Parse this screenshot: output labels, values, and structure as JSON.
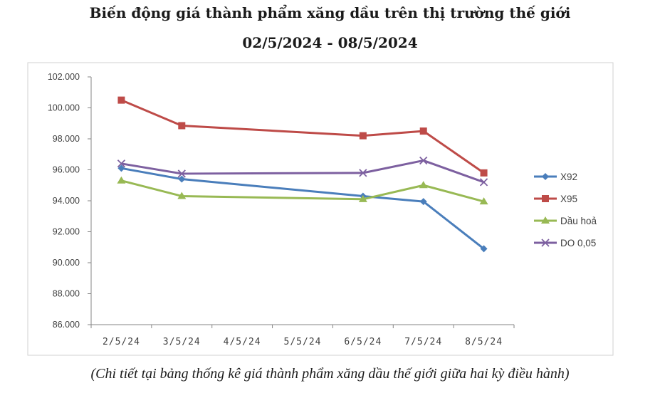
{
  "title": "Biến động giá thành phẩm xăng dầu trên thị trường thế giới",
  "subtitle": "02/5/2024 - 08/5/2024",
  "caption": "(Chi tiết tại bảng thống kê giá thành phẩm xăng dầu thế giới giữa hai kỳ điều hành)",
  "chart_data": {
    "type": "line",
    "categories": [
      "2/5/24",
      "3/5/24",
      "4/5/24",
      "5/5/24",
      "6/5/24",
      "7/5/24",
      "8/5/24"
    ],
    "ylim": [
      86,
      102
    ],
    "yticks": [
      86,
      88,
      90,
      92,
      94,
      96,
      98,
      100,
      102
    ],
    "ytick_labels": [
      "86.000",
      "88.000",
      "90.000",
      "92.000",
      "94.000",
      "96.000",
      "98.000",
      "100.000",
      "102.000"
    ],
    "grid": false,
    "legend_position": "right",
    "series": [
      {
        "name": "X92",
        "color": "#4a7ebb",
        "marker": "diamond",
        "values": [
          96.1,
          95.4,
          null,
          null,
          94.3,
          93.95,
          90.9
        ]
      },
      {
        "name": "X95",
        "color": "#be4b48",
        "marker": "square",
        "values": [
          100.5,
          98.85,
          null,
          null,
          98.2,
          98.5,
          95.8
        ]
      },
      {
        "name": "Dầu hoả",
        "color": "#98b954",
        "marker": "triangle",
        "values": [
          95.3,
          94.3,
          null,
          null,
          94.1,
          95.0,
          93.95
        ]
      },
      {
        "name": "DO 0,05",
        "color": "#7d60a0",
        "marker": "x",
        "values": [
          96.4,
          95.75,
          null,
          null,
          95.8,
          96.6,
          95.2
        ]
      }
    ]
  }
}
